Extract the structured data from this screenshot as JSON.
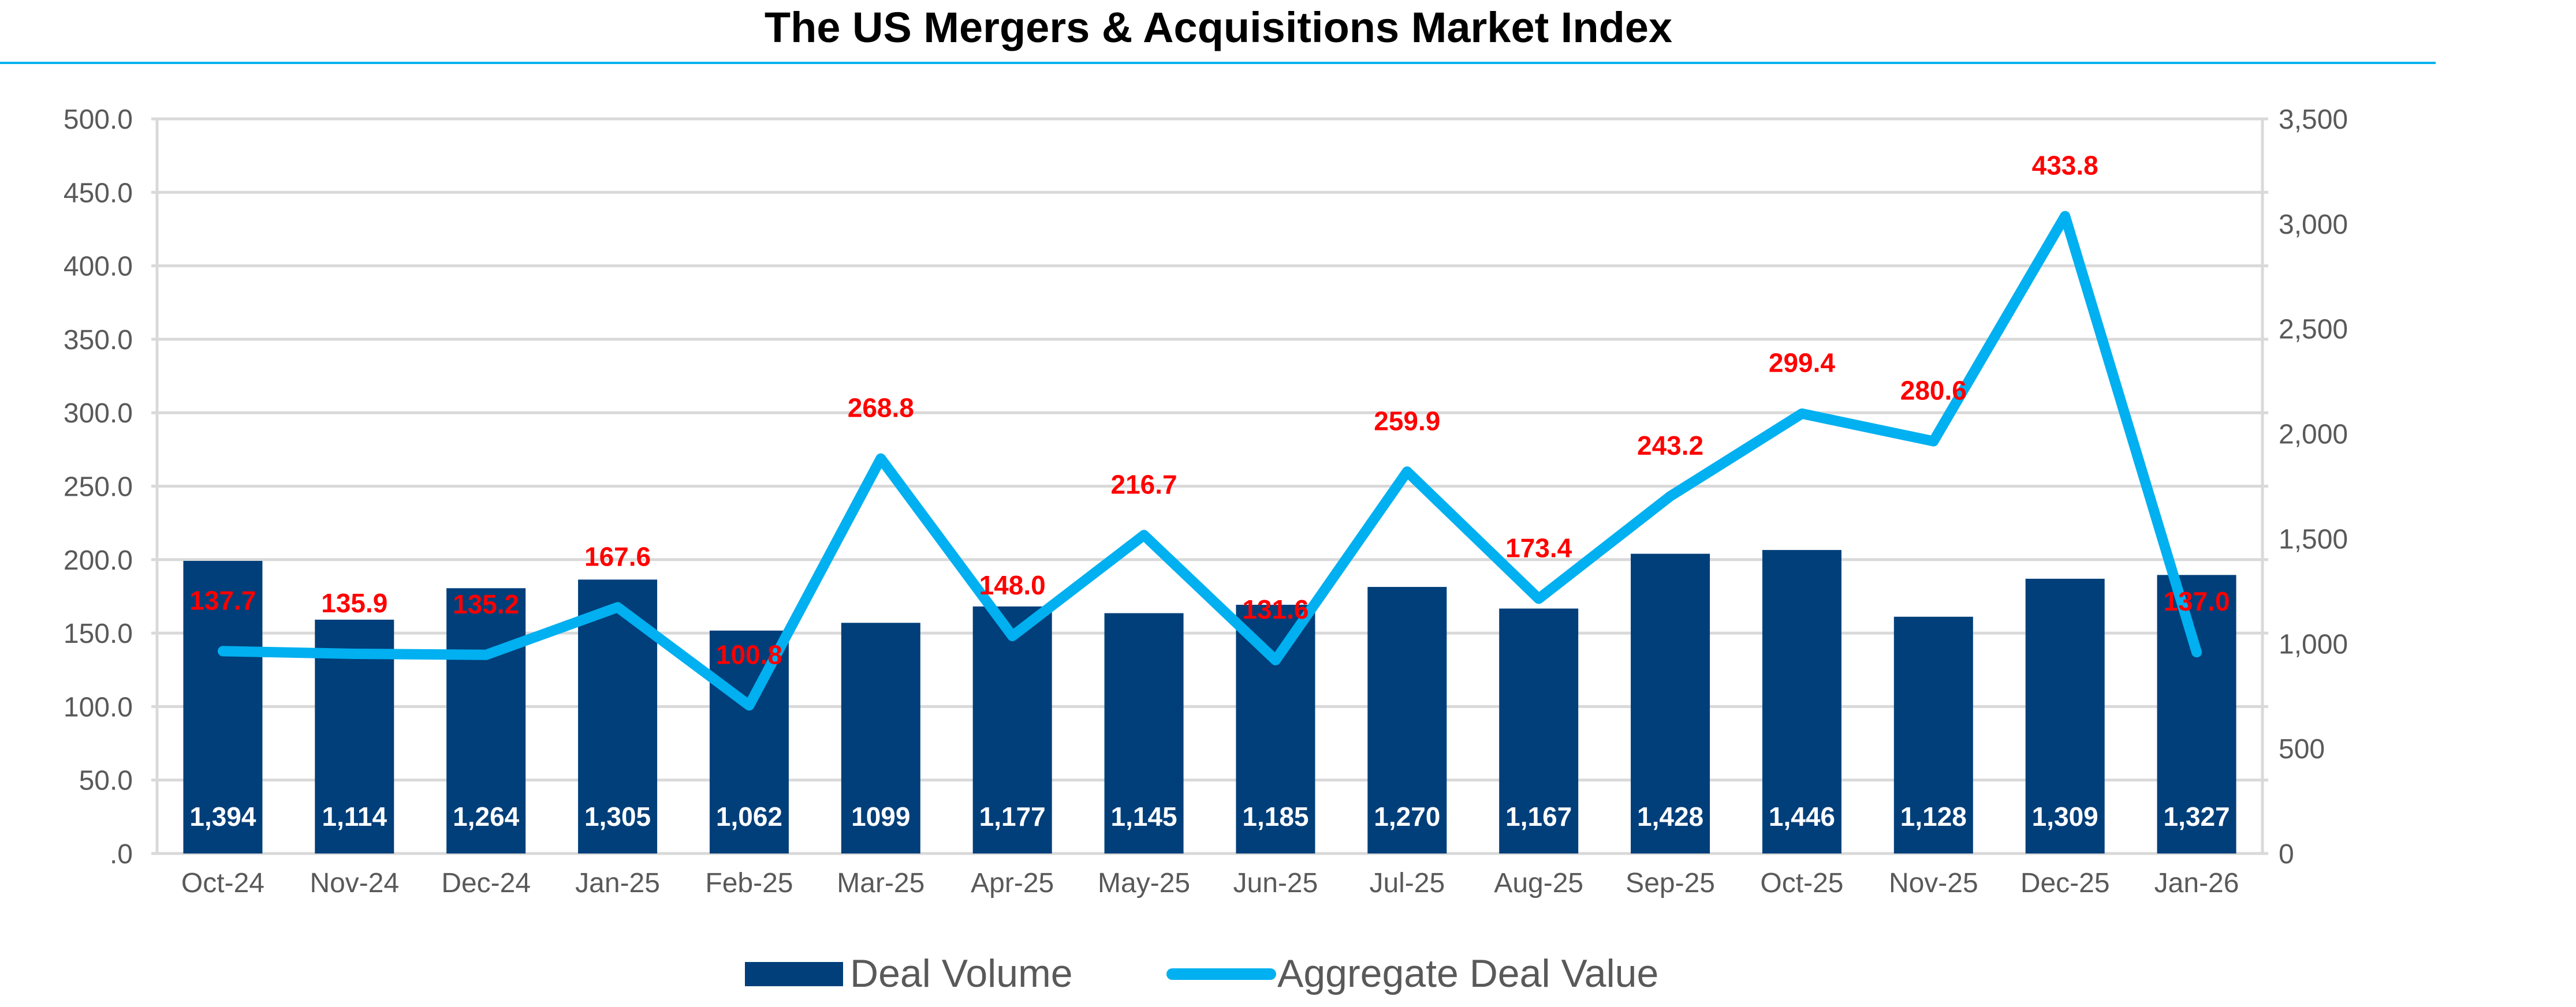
{
  "chart_data": {
    "type": "bar",
    "title": "The US Mergers & Acquisitions Market Index",
    "categories": [
      "Oct-24",
      "Nov-24",
      "Dec-24",
      "Jan-25",
      "Feb-25",
      "Mar-25",
      "Apr-25",
      "May-25",
      "Jun-25",
      "Jul-25",
      "Aug-25",
      "Sep-25",
      "Oct-25",
      "Nov-25",
      "Dec-25",
      "Jan-26"
    ],
    "series": [
      {
        "name": "Deal Volume",
        "type": "bar",
        "axis": "right",
        "color": "#003f7a",
        "values": [
          1394,
          1114,
          1264,
          1305,
          1062,
          1099,
          1177,
          1145,
          1185,
          1270,
          1167,
          1428,
          1446,
          1128,
          1309,
          1327
        ],
        "labels": [
          "1,394",
          "1,114",
          "1,264",
          "1,305",
          "1,062",
          "1099",
          "1,177",
          "1,145",
          "1,185",
          "1,270",
          "1,167",
          "1,428",
          "1,446",
          "1,128",
          "1,309",
          "1,327"
        ]
      },
      {
        "name": "Aggregate Deal Value",
        "type": "line",
        "axis": "left",
        "color": "#00b0f0",
        "label_color": "#ff0000",
        "values": [
          137.7,
          135.9,
          135.2,
          167.6,
          100.8,
          268.8,
          148.0,
          216.7,
          131.6,
          259.9,
          173.4,
          243.2,
          299.4,
          280.6,
          433.8,
          137.0
        ],
        "labels": [
          "137.7",
          "135.9",
          "135.2",
          "167.6",
          "100.8",
          "268.8",
          "148.0",
          "216.7",
          "131.6",
          "259.9",
          "173.4",
          "243.2",
          "299.4",
          "280.6",
          "433.8",
          "137.0"
        ]
      }
    ],
    "left_axis": {
      "range": [
        0,
        500
      ],
      "ticks": [
        ".0",
        "50.0",
        "100.0",
        "150.0",
        "200.0",
        "250.0",
        "300.0",
        "350.0",
        "400.0",
        "450.0",
        "500.0"
      ]
    },
    "right_axis": {
      "range": [
        0,
        3500
      ],
      "ticks": [
        "0",
        "500",
        "1,000",
        "1,500",
        "2,000",
        "2,500",
        "3,000",
        "3,500"
      ]
    },
    "grid": true,
    "legend_position": "bottom",
    "colors": {
      "title_rule": "#00b0f0",
      "grid": "#d9d9d9",
      "tick_text": "#595959"
    }
  }
}
